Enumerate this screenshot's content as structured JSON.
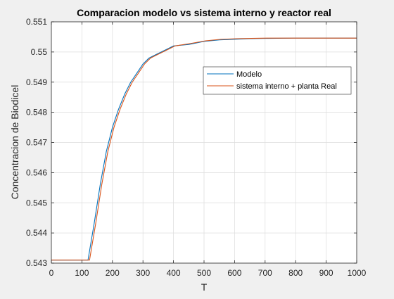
{
  "chart_data": {
    "type": "line",
    "title": "Comparacion modelo vs sistema interno y reactor real",
    "xlabel": "T",
    "ylabel": "Concentracion de Biodicel",
    "xlim": [
      0,
      1000
    ],
    "ylim": [
      0.543,
      0.551
    ],
    "xticks": [
      0,
      100,
      200,
      300,
      400,
      500,
      600,
      700,
      800,
      900,
      1000
    ],
    "yticks": [
      0.543,
      0.544,
      0.545,
      0.546,
      0.547,
      0.548,
      0.549,
      0.55,
      0.551
    ],
    "xtick_labels": [
      "0",
      "100",
      "200",
      "300",
      "400",
      "500",
      "600",
      "700",
      "800",
      "900",
      "1000"
    ],
    "ytick_labels": [
      "0.543",
      "0.544",
      "0.545",
      "0.546",
      "0.547",
      "0.548",
      "0.549",
      "0.55",
      "0.551"
    ],
    "grid": true,
    "legend_position": "upper-right inside",
    "series": [
      {
        "name": "Modelo",
        "color": "#0072BD",
        "x": [
          0,
          110,
          120,
          140,
          160,
          180,
          200,
          220,
          240,
          260,
          280,
          300,
          320,
          340,
          360,
          380,
          400,
          450,
          500,
          550,
          600,
          650,
          700,
          800,
          900,
          1000
        ],
        "y": [
          0.5431,
          0.5431,
          0.5431,
          0.5443,
          0.5456,
          0.5467,
          0.5475,
          0.5481,
          0.5486,
          0.549,
          0.5493,
          0.5496,
          0.5498,
          0.5499,
          0.55,
          0.5501,
          0.5502,
          0.55025,
          0.55035,
          0.5504,
          0.55042,
          0.55044,
          0.55045,
          0.55046,
          0.55046,
          0.55046
        ]
      },
      {
        "name": "sistema interno + planta Real",
        "color": "#D95319",
        "x": [
          0,
          120,
          125,
          145,
          165,
          185,
          205,
          225,
          245,
          265,
          285,
          305,
          325,
          345,
          365,
          385,
          405,
          455,
          505,
          555,
          605,
          655,
          705,
          800,
          900,
          1000
        ],
        "y": [
          0.5431,
          0.5431,
          0.5431,
          0.5443,
          0.5456,
          0.5467,
          0.5475,
          0.5481,
          0.5486,
          0.549,
          0.5493,
          0.5496,
          0.5498,
          0.5499,
          0.55,
          0.5501,
          0.5502,
          0.55028,
          0.55037,
          0.55042,
          0.55044,
          0.55045,
          0.55046,
          0.55046,
          0.55046,
          0.55046
        ]
      }
    ]
  }
}
